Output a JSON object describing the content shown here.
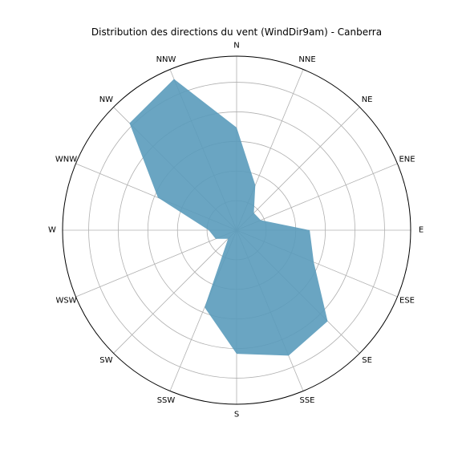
{
  "chart_data": {
    "type": "radar",
    "title": "Distribution des directions du vent (WindDir9am) - Canberra",
    "directions": [
      "N",
      "NNE",
      "NE",
      "ENE",
      "E",
      "ESE",
      "SE",
      "SSE",
      "S",
      "SSW",
      "SW",
      "WSW",
      "W",
      "WNW",
      "NW",
      "NNW"
    ],
    "values": [
      0.59,
      0.28,
      0.14,
      0.15,
      0.42,
      0.48,
      0.74,
      0.78,
      0.71,
      0.48,
      0.07,
      0.13,
      0.16,
      0.49,
      0.87,
      0.94
    ],
    "rlim": [
      0,
      1.0
    ],
    "ring_values": [
      0.17,
      0.34,
      0.51,
      0.68,
      0.85,
      1.0
    ],
    "grid": true,
    "fill_color": "#5a9bbb"
  }
}
